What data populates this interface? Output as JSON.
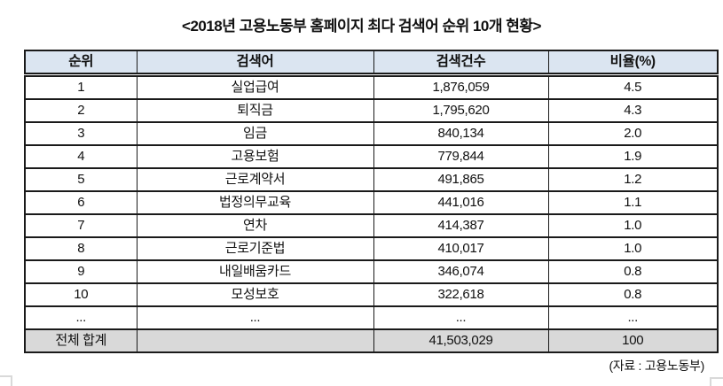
{
  "title": "<2018년 고용노동부 홈페이지 최다 검색어 순위 10개 현황>",
  "table": {
    "headers": [
      "순위",
      "검색어",
      "검색건수",
      "비율(%)"
    ],
    "rows": [
      [
        "1",
        "실업급여",
        "1,876,059",
        "4.5"
      ],
      [
        "2",
        "퇴직금",
        "1,795,620",
        "4.3"
      ],
      [
        "3",
        "임금",
        "840,134",
        "2.0"
      ],
      [
        "4",
        "고용보험",
        "779,844",
        "1.9"
      ],
      [
        "5",
        "근로계약서",
        "491,865",
        "1.2"
      ],
      [
        "6",
        "법정의무교육",
        "441,016",
        "1.1"
      ],
      [
        "7",
        "연차",
        "414,387",
        "1.0"
      ],
      [
        "8",
        "근로기준법",
        "410,017",
        "1.0"
      ],
      [
        "9",
        "내일배움카드",
        "346,074",
        "0.8"
      ],
      [
        "10",
        "모성보호",
        "322,618",
        "0.8"
      ],
      [
        "...",
        "...",
        "...",
        "..."
      ]
    ],
    "total_row": [
      "전체 합계",
      "",
      "41,503,029",
      "100"
    ]
  },
  "source_note": "(자료 : 고용노동부)",
  "colors": {
    "header_bg": "#dbe5f1",
    "total_row_bg": "#d9d9d9",
    "border": "#1a1a1a",
    "handle": "#d9d9d9"
  }
}
